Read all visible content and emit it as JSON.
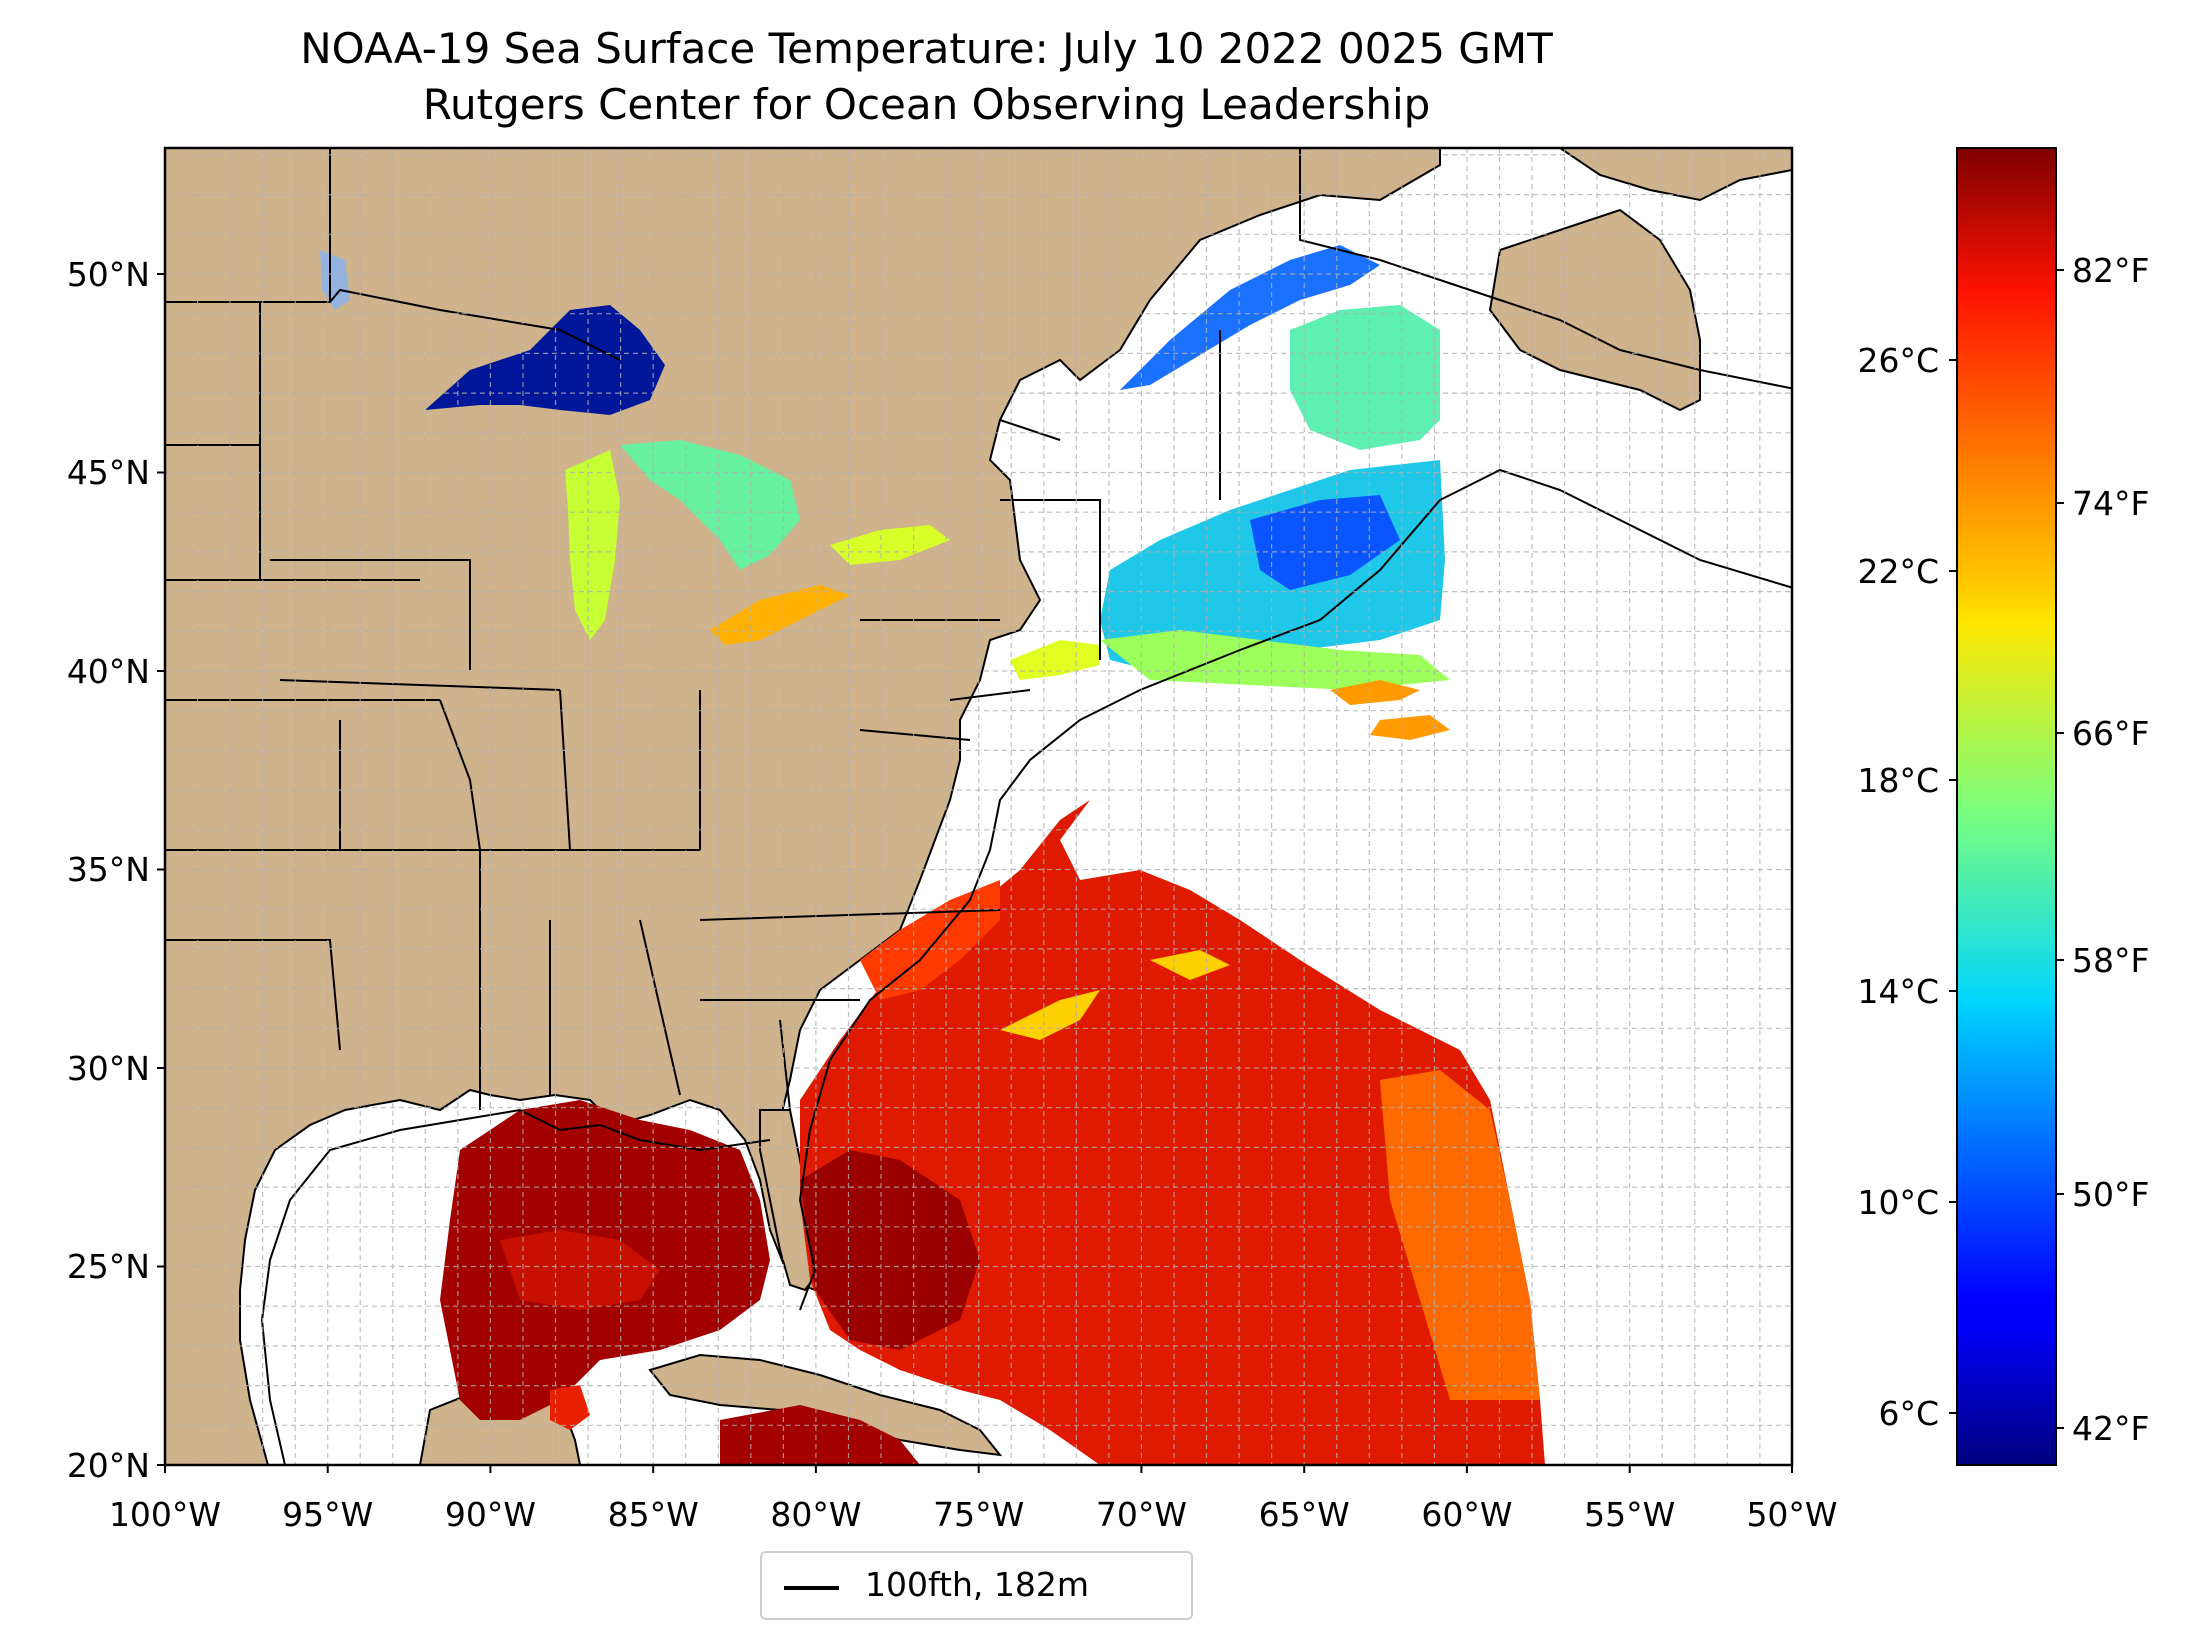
{
  "title": {
    "line1": "NOAA-19 Sea Surface Temperature: July 10 2022 0025 GMT",
    "line2": "Rutgers Center for Ocean Observing Leadership"
  },
  "map": {
    "projection": "Plate Carree",
    "lon_range": [
      -100,
      -50
    ],
    "lat_range": [
      20,
      52.2
    ],
    "land_color": "#cfb38c",
    "lake_color": "#94b3e0",
    "ocean_color": "#ffffff",
    "gridlines": "dashed grey, 1 degree",
    "x_tick_labels": [
      "100°W",
      "95°W",
      "90°W",
      "85°W",
      "80°W",
      "75°W",
      "70°W",
      "65°W",
      "60°W",
      "55°W",
      "50°W"
    ],
    "y_tick_labels": [
      "20°N",
      "25°N",
      "30°N",
      "35°N",
      "40°N",
      "45°N",
      "50°N"
    ]
  },
  "legend": {
    "label": "100fth, 182m",
    "line_color": "#000000"
  },
  "colorbar": {
    "colormap": "jet",
    "range_celsius": [
      5.3,
      30.2
    ],
    "celsius_labels": [
      "6°C",
      "10°C",
      "14°C",
      "18°C",
      "22°C",
      "26°C"
    ],
    "fahrenheit_labels": [
      "42°F",
      "50°F",
      "58°F",
      "66°F",
      "74°F",
      "82°F"
    ]
  },
  "sst_regions": [
    {
      "region": "Lake Superior",
      "color": "#00179a",
      "approx_F": 44
    },
    {
      "region": "Lakes Michigan / Huron / Erie / Ontario",
      "color": "#c0ff3a",
      "approx_F": 67
    },
    {
      "region": "Gulf of St. Lawrence / Gulf of Maine",
      "color": "#3fe0c8",
      "approx_F": 58
    },
    {
      "region": "Gulf Stream / Sargasso Sea",
      "color": "#e01a00",
      "approx_F": 82
    },
    {
      "region": "Gulf of Mexico / Caribbean",
      "color": "#a80000",
      "approx_F": 86
    }
  ]
}
